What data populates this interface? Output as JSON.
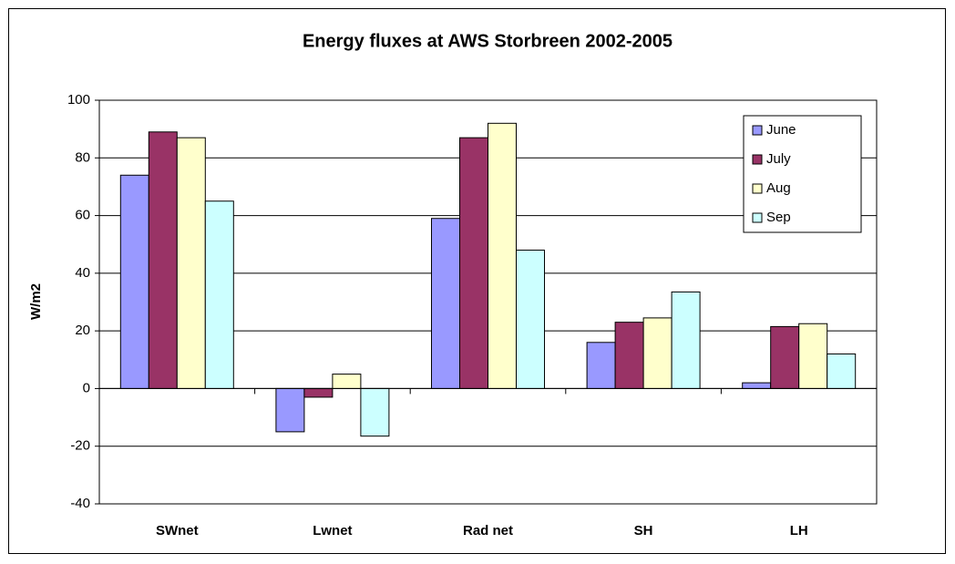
{
  "chart_data": {
    "type": "bar",
    "title": "Energy fluxes at AWS Storbreen 2002-2005",
    "y_label": "W/m2",
    "categories": [
      "SWnet",
      "Lwnet",
      "Rad net",
      "SH",
      "LH"
    ],
    "series": [
      {
        "name": "June",
        "color": "#9999ff",
        "values": [
          74,
          -15,
          59,
          16,
          2
        ]
      },
      {
        "name": "July",
        "color": "#993366",
        "values": [
          89,
          -3,
          87,
          23,
          21.5
        ]
      },
      {
        "name": "Aug",
        "color": "#ffffcc",
        "values": [
          87,
          5,
          92,
          24.5,
          22.5
        ]
      },
      {
        "name": "Sep",
        "color": "#ccffff",
        "values": [
          65,
          -16.5,
          48,
          33.5,
          12
        ]
      }
    ],
    "ylim": [
      -40,
      100
    ],
    "yticks": [
      -40,
      -20,
      0,
      20,
      40,
      60,
      80,
      100
    ],
    "grid": true,
    "legend": "upper right"
  }
}
